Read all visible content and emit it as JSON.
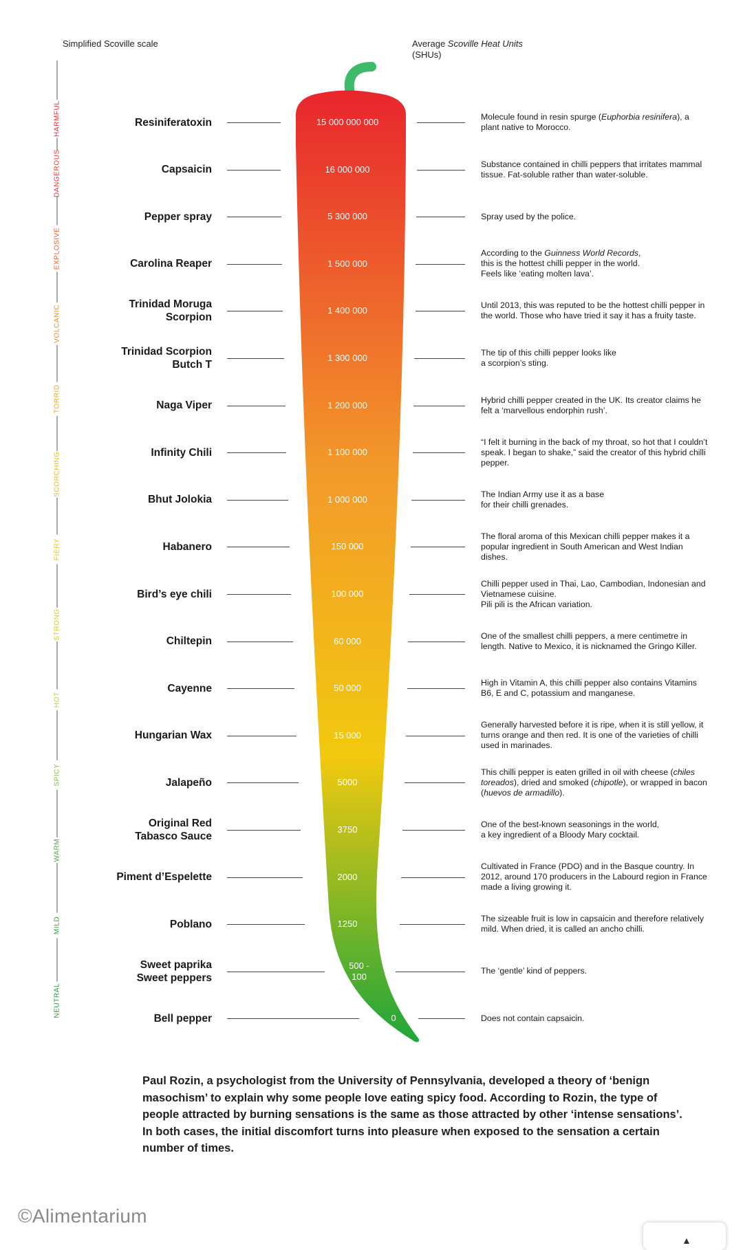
{
  "header": {
    "left_label": "Simplified Scoville scale",
    "right_label_prefix": "Average ",
    "right_label_italic": "Scoville Heat Units",
    "right_label_suffix": "(SHUs)"
  },
  "scale_levels": [
    {
      "label": "HARMFUL",
      "color": "#e8232e"
    },
    {
      "label": "DANGEROUS",
      "color": "#e8352a"
    },
    {
      "label": "EXPLOSIVE",
      "color": "#ec5a25"
    },
    {
      "label": "VOLCANIC",
      "color": "#ee8a1f"
    },
    {
      "label": "TORRID",
      "color": "#f1a41c"
    },
    {
      "label": "SCORCHING",
      "color": "#eeb818"
    },
    {
      "label": "FIERY",
      "color": "#e7c414"
    },
    {
      "label": "STRONG",
      "color": "#d7c816"
    },
    {
      "label": "HOT",
      "color": "#b9cc2e"
    },
    {
      "label": "SPICY",
      "color": "#7cc33b"
    },
    {
      "label": "WARM",
      "color": "#3fae3a"
    },
    {
      "label": "MILD",
      "color": "#2aa43a"
    },
    {
      "label": "NEUTRAL",
      "color": "#1f9a3a"
    }
  ],
  "peppers": [
    {
      "name": "Resiniferatoxin",
      "shu": "15 000 000 000",
      "desc_html": "Molecule found in resin spurge (<em>Euphorbia resinifera</em>), a plant native to Morocco."
    },
    {
      "name": "Capsaicin",
      "shu": "16 000 000",
      "desc_html": "Substance contained in chilli peppers that irritates mammal tissue. Fat-soluble rather than water-soluble."
    },
    {
      "name": "Pepper spray",
      "shu": "5 300 000",
      "desc_html": "Spray used by the police."
    },
    {
      "name": "Carolina Reaper",
      "shu": "1 500 000",
      "desc_html": "According to the <em>Guinness World Records</em>,<br>this is the hottest chilli pepper in the world.<br>Feels like ‘eating molten lava’."
    },
    {
      "name": "Trinidad Moruga\nScorpion",
      "shu": "1 400 000",
      "desc_html": "Until 2013, this was reputed to be the hottest chilli pepper in the world. Those who have tried it say it has a fruity taste."
    },
    {
      "name": "Trinidad Scorpion\nButch T",
      "shu": "1 300 000",
      "desc_html": "The tip of this chilli pepper looks like<br>a scorpion’s sting."
    },
    {
      "name": "Naga Viper",
      "shu": "1 200 000",
      "desc_html": "Hybrid chilli pepper created in the UK. Its creator claims he felt a ‘marvellous endorphin rush’."
    },
    {
      "name": "Infinity Chili",
      "shu": "1 100 000",
      "desc_html": "“I felt it burning in the back of my throat, so hot that I couldn’t speak. I began to shake,” said the creator of this hybrid chilli pepper."
    },
    {
      "name": "Bhut Jolokia",
      "shu": "1 000 000",
      "desc_html": "The Indian Army use it as a base<br>for their chilli grenades."
    },
    {
      "name": "Habanero",
      "shu": "150 000",
      "desc_html": "The floral aroma of this Mexican chilli pepper makes it a popular ingredient in South American and West Indian dishes."
    },
    {
      "name": "Bird’s eye chili",
      "shu": "100 000",
      "desc_html": "Chilli pepper used in Thai, Lao, Cambodian, Indonesian and Vietnamese cuisine.<br>Pili pili is the African variation."
    },
    {
      "name": "Chiltepin",
      "shu": "60 000",
      "desc_html": "One of the smallest chilli peppers, a mere centimetre in length. Native to Mexico, it is nicknamed the Gringo Killer."
    },
    {
      "name": "Cayenne",
      "shu": "50 000",
      "desc_html": "High in Vitamin A, this chilli pepper also contains Vitamins B6, E and C, potassium and manganese."
    },
    {
      "name": "Hungarian Wax",
      "shu": "15 000",
      "desc_html": "Generally harvested before it is ripe, when it is still yellow, it turns orange and then red. It is one of the varieties of chilli used in marinades."
    },
    {
      "name": "Jalapeño",
      "shu": "5000",
      "desc_html": "This chilli pepper is eaten grilled in oil with cheese (<em>chiles toreados</em>), dried and smoked (<em>chipotle</em>), or wrapped in bacon (<em>huevos de armadillo</em>)."
    },
    {
      "name": "Original Red\nTabasco Sauce",
      "shu": "3750",
      "desc_html": "One of the best-known seasonings in the world,<br>a key ingredient of a Bloody Mary cocktail."
    },
    {
      "name": "Piment d’Espelette",
      "shu": "2000",
      "desc_html": "Cultivated in France (PDO) and in the Basque country. In 2012, around 170 producers in the Labourd region in France made a living growing it."
    },
    {
      "name": "Poblano",
      "shu": "1250",
      "desc_html": "The sizeable fruit is low in capsaicin and therefore relatively mild. When dried, it is called an ancho chilli."
    },
    {
      "name": "Sweet paprika\nSweet peppers",
      "shu": "500 -\n100",
      "desc_html": "The ‘gentle’ kind of peppers."
    },
    {
      "name": "Bell pepper",
      "shu": "0",
      "desc_html": "Does not contain capsaicin."
    }
  ],
  "footnote": "Paul Rozin, a psychologist from the University of Pennsylvania, developed a theory of ‘benign masochism’ to explain why some people love eating spicy food. According to Rozin, the type of people attracted by burning sensations is the same as those attracted by other ‘intense sensations’. In both cases, the initial discomfort turns into pleasure when exposed to the sensation a certain number of times.",
  "credit": "©Alimentarium",
  "colors": {
    "stem": "#3dbb6a",
    "red": "#e8262d",
    "orange": "#f39a2a",
    "yellow": "#f2c90f",
    "green": "#1fa63a"
  }
}
